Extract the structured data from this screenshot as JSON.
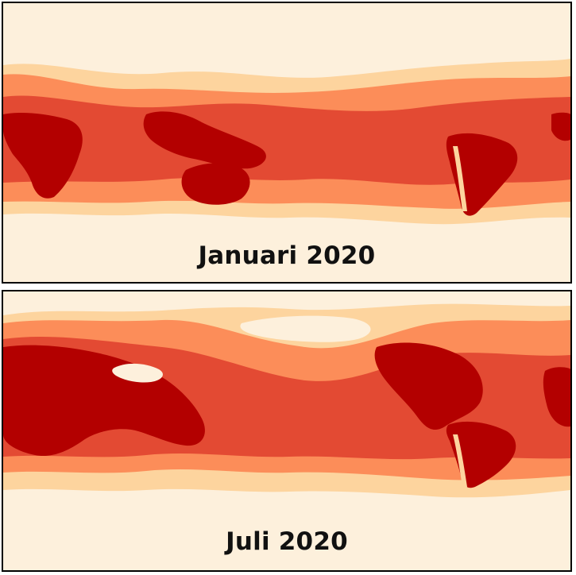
{
  "panels": [
    {
      "id": "jan",
      "label": "Januari 2020"
    },
    {
      "id": "jul",
      "label": "Juli 2020"
    }
  ],
  "colors": {
    "background": "#fdf0dc",
    "light": "#fdd49e",
    "mid_light": "#fc8d59",
    "mid": "#e34a33",
    "dark": "#b30000",
    "border": "#000000"
  }
}
